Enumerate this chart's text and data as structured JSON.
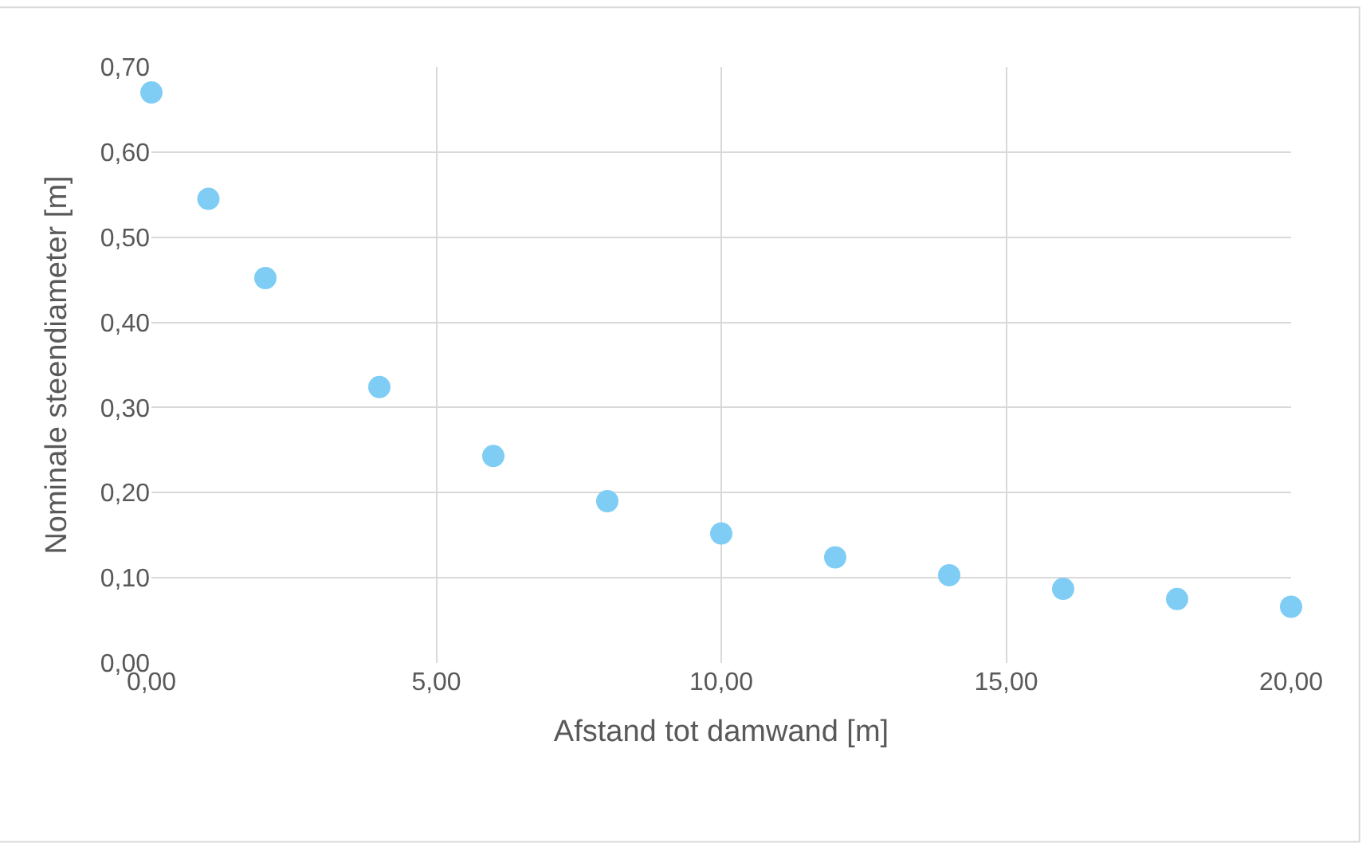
{
  "chart_data": {
    "type": "scatter",
    "xlabel": "Afstand tot damwand [m]",
    "ylabel": "Nominale steendiameter [m]",
    "x": [
      0,
      1,
      2,
      4,
      6,
      8,
      10,
      12,
      14,
      16,
      18,
      20
    ],
    "series": [
      {
        "color": "#7fcdf5",
        "values": [
          0.67,
          0.545,
          0.452,
          0.324,
          0.243,
          0.19,
          0.152,
          0.124,
          0.103,
          0.087,
          0.075,
          0.066
        ]
      }
    ],
    "xlim": [
      0,
      20
    ],
    "xticks": [
      {
        "value": 0,
        "label": "0,00"
      },
      {
        "value": 5,
        "label": "5,00"
      },
      {
        "value": 10,
        "label": "10,00"
      },
      {
        "value": 15,
        "label": "15,00"
      },
      {
        "value": 20,
        "label": "20,00"
      }
    ],
    "ylim": [
      0,
      0.7
    ],
    "yticks": [
      {
        "value": 0,
        "label": "0,00"
      },
      {
        "value": 0.1,
        "label": "0,10"
      },
      {
        "value": 0.2,
        "label": "0,20"
      },
      {
        "value": 0.3,
        "label": "0,30"
      },
      {
        "value": 0.4,
        "label": "0,40"
      },
      {
        "value": 0.5,
        "label": "0,50"
      },
      {
        "value": 0.6,
        "label": "0,60"
      },
      {
        "value": 0.7,
        "label": "0,70"
      }
    ],
    "grid": true,
    "marker": "circle",
    "legend": false
  }
}
